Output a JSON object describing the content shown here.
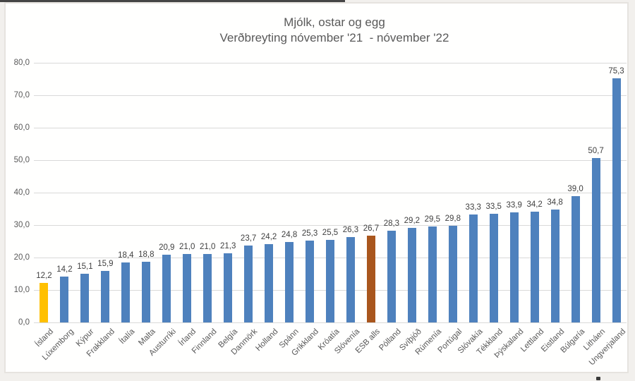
{
  "page": {
    "background_color": "#f2f0ed",
    "top_line_color": "#454545",
    "card_border_color": "#e6e3df"
  },
  "chart": {
    "title": "Mjólk, ostar og egg",
    "subtitle": "Verðbreyting nóvember '21  - nóvember '22"
  },
  "chart_data": {
    "type": "bar",
    "title": "Mjólk, ostar og egg",
    "subtitle": "Verðbreyting nóvember '21  - nóvember '22",
    "categories": [
      "Ísland",
      "Lúxemborg",
      "Kýpur",
      "Frakkland",
      "Ítalía",
      "Malta",
      "Austurríki",
      "Írland",
      "Finnland",
      "Belgía",
      "Danmörk",
      "Holland",
      "Spánn",
      "Grikkland",
      "Króatía",
      "Slóvenía",
      "ESB alls",
      "Pólland",
      "Svíþjóð",
      "Rúmenía",
      "Portúgal",
      "Slóvakía",
      "Tékkland",
      "Þýskaland",
      "Lettland",
      "Eistland",
      "Búlgaría",
      "Litháen",
      "Ungverjaland"
    ],
    "values": [
      12.2,
      14.2,
      15.1,
      15.9,
      18.4,
      18.8,
      20.9,
      21.0,
      21.0,
      21.3,
      23.7,
      24.2,
      24.8,
      25.3,
      25.5,
      26.3,
      26.7,
      28.3,
      29.2,
      29.5,
      29.8,
      33.3,
      33.5,
      33.9,
      34.2,
      34.8,
      39.0,
      50.7,
      75.3
    ],
    "value_labels": [
      "12,2",
      "14,2",
      "15,1",
      "15,9",
      "18,4",
      "18,8",
      "20,9",
      "21,0",
      "21,0",
      "21,3",
      "23,7",
      "24,2",
      "24,8",
      "25,3",
      "25,5",
      "26,3",
      "26,7",
      "28,3",
      "29,2",
      "29,5",
      "29,8",
      "33,3",
      "33,5",
      "33,9",
      "34,2",
      "34,8",
      "39,0",
      "50,7",
      "75,3"
    ],
    "y_ticks": [
      {
        "value": 0,
        "label": "0,0"
      },
      {
        "value": 10,
        "label": "10,0"
      },
      {
        "value": 20,
        "label": "20,0"
      },
      {
        "value": 30,
        "label": "30,0"
      },
      {
        "value": 40,
        "label": "40,0"
      },
      {
        "value": 50,
        "label": "50,0"
      },
      {
        "value": 60,
        "label": "60,0"
      },
      {
        "value": 70,
        "label": "70,0"
      },
      {
        "value": 80,
        "label": "80,0"
      }
    ],
    "ylim": [
      0,
      80
    ],
    "grid": true,
    "legend": "none",
    "xlabel": "",
    "ylabel": "",
    "colors": {
      "default_bar": "#4e81bd",
      "highlight_first": "#ffc000",
      "highlight_esb": "#a9561d",
      "gridline": "#d9d9d9",
      "axis_text": "#595959",
      "value_label_text": "#3f3f3f",
      "title_text": "#595959"
    },
    "highlighted_bars": [
      {
        "category": "Ísland",
        "index": 0,
        "color": "#ffc000"
      },
      {
        "category": "ESB alls",
        "index": 16,
        "color": "#a9561d"
      }
    ]
  }
}
